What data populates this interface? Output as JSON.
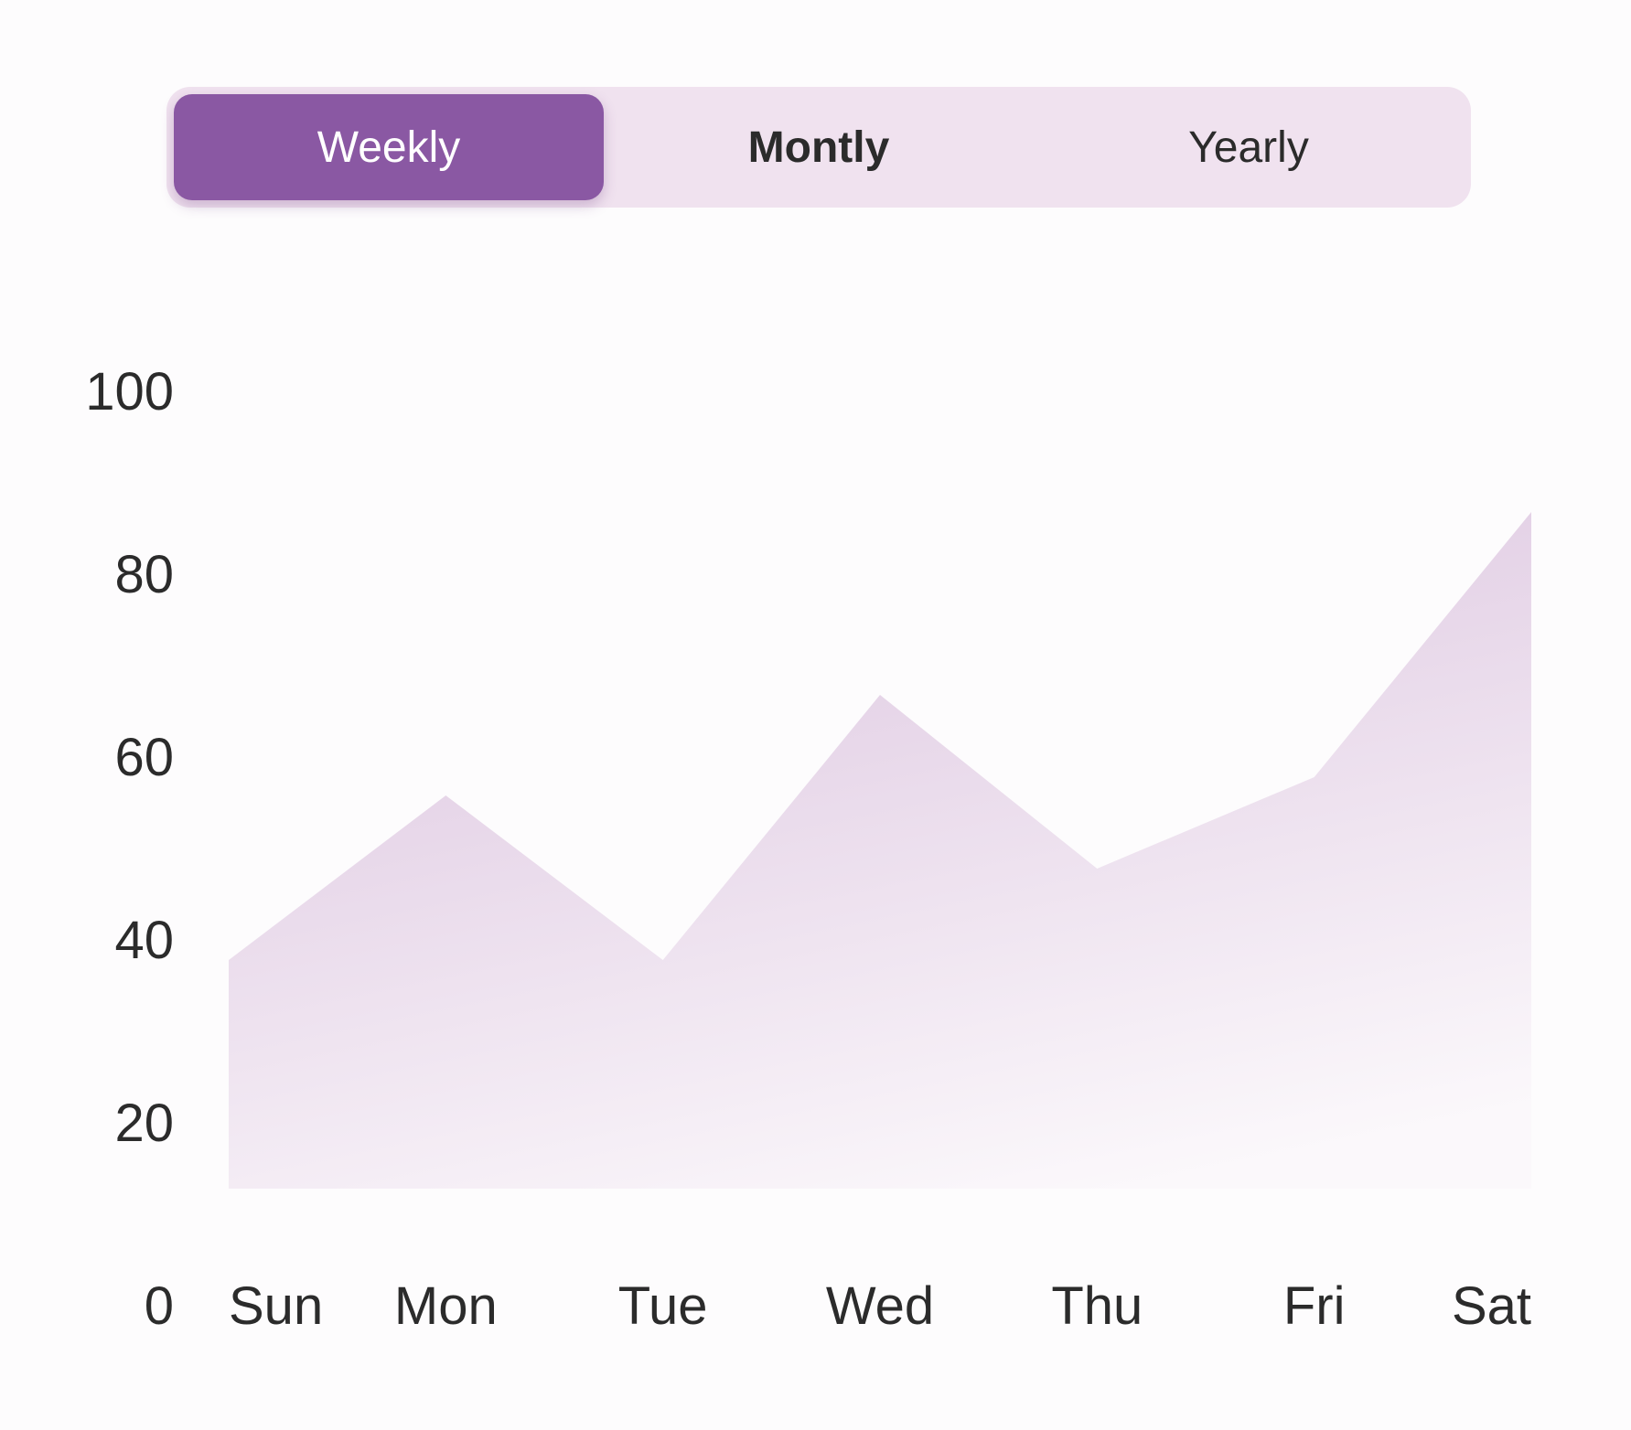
{
  "tabs": [
    {
      "label": "Weekly",
      "active": true
    },
    {
      "label": "Montly",
      "active": false
    },
    {
      "label": "Yearly",
      "active": false
    }
  ],
  "colors": {
    "accent": "#8a58a3",
    "tab_track": "#f0e2ef",
    "fill_top": "#ddc6e0",
    "fill_bottom": "#fbf8fb",
    "tick_text": "#2b2b2b"
  },
  "chart_data": {
    "type": "area",
    "categories": [
      "Sun",
      "Mon",
      "Tue",
      "Wed",
      "Thu",
      "Fri",
      "Sat"
    ],
    "values": [
      38,
      56,
      38,
      67,
      48,
      58,
      87
    ],
    "yticks": [
      0,
      20,
      40,
      60,
      80,
      100
    ],
    "ylim": [
      0,
      100
    ],
    "baseline": 13,
    "grid": false,
    "legend": "none"
  }
}
